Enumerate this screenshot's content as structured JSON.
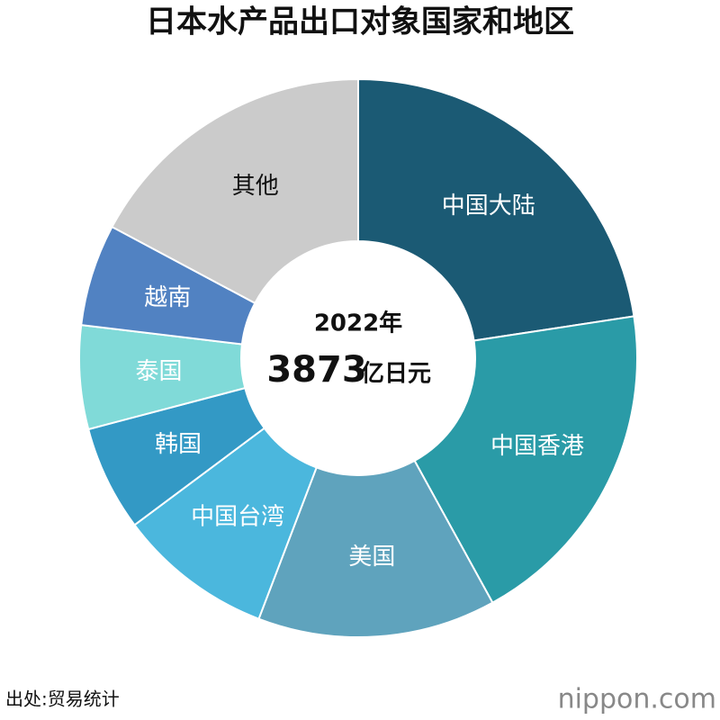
{
  "chart_data": {
    "type": "donut",
    "title": "日本水产品出口对象国家和地区",
    "categories": [
      "中国大陆",
      "中国香港",
      "美国",
      "中国台湾",
      "韩国",
      "泰国",
      "越南",
      "其他"
    ],
    "values": [
      22.6,
      19.4,
      13.8,
      9.0,
      6.1,
      6.0,
      5.9,
      17.2
    ],
    "colors": [
      "#1b5a74",
      "#2a9ba7",
      "#5fa3bd",
      "#4bb7dd",
      "#3399c5",
      "#80dad8",
      "#5182c2",
      "#cbcbcb"
    ],
    "label_colors": [
      "#ffffff",
      "#ffffff",
      "#ffffff",
      "#ffffff",
      "#ffffff",
      "#ffffff",
      "#ffffff",
      "#111111"
    ],
    "center": {
      "year": "2022年",
      "total": "3873",
      "unit": "亿日元"
    },
    "source": "出处:贸易统计",
    "logo": "nippon.com"
  }
}
